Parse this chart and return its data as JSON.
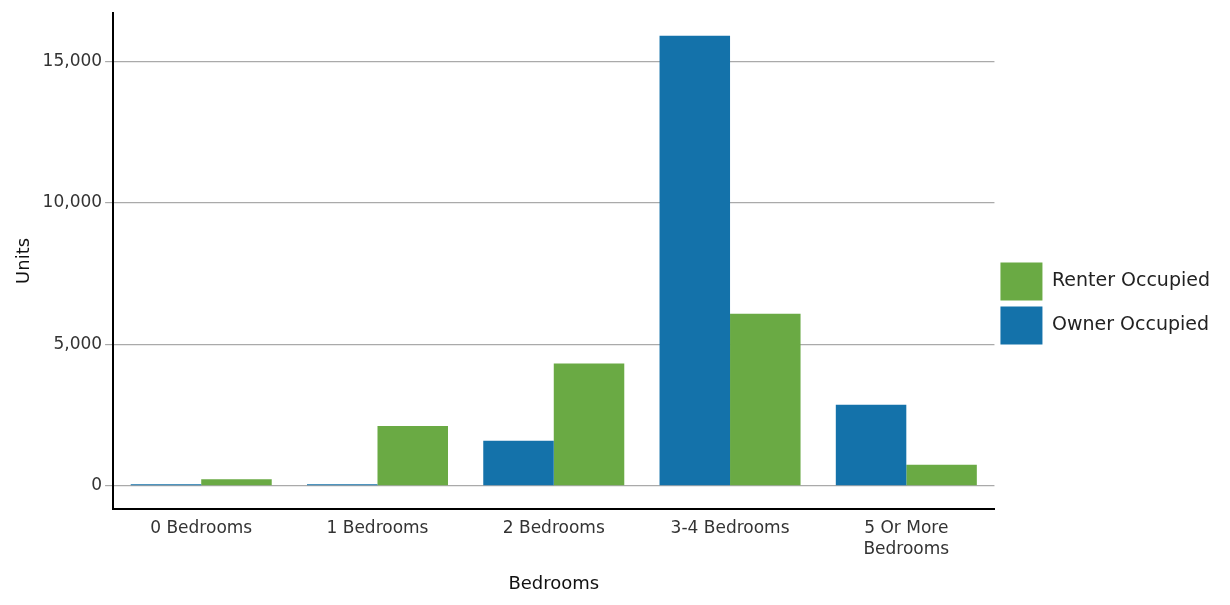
{
  "chart_data": {
    "type": "bar",
    "xlabel": "Bedrooms",
    "ylabel": "Units",
    "categories": [
      "0 Bedrooms",
      "1 Bedrooms",
      "2 Bedrooms",
      "3-4 Bedrooms",
      "5 Or More Bedrooms"
    ],
    "series": [
      {
        "name": "Owner Occupied",
        "color": "#1472aa",
        "values": [
          60,
          60,
          1600,
          15900,
          2870
        ]
      },
      {
        "name": "Renter Occupied",
        "color": "#6aaa44",
        "values": [
          240,
          2120,
          4330,
          6080,
          750
        ]
      }
    ],
    "ylim": [
      -800,
      16700
    ],
    "yticks": [
      0,
      {
        "value": 5000,
        "label": "5,000"
      },
      {
        "value": 10000,
        "label": "10,000"
      },
      {
        "value": 15000,
        "label": "15,000"
      }
    ],
    "grid": "y",
    "legend": "right"
  }
}
